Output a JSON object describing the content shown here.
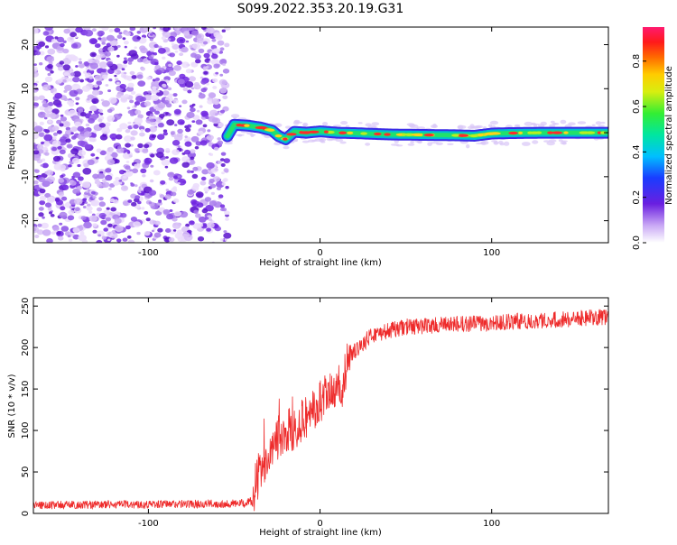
{
  "title": "S099.2022.353.20.19.G31",
  "colors": {
    "snr_line": "#ee2a2a",
    "axis": "#000000",
    "background": "#ffffff"
  },
  "chart_data": [
    {
      "type": "heatmap",
      "xlabel": "Height of straight line (km)",
      "ylabel": "Frequency (Hz)",
      "xlim": [
        -167,
        168
      ],
      "ylim": [
        -25,
        24
      ],
      "x_ticks": [
        -100,
        0,
        100
      ],
      "y_ticks": [
        -20,
        -10,
        0,
        10,
        20
      ],
      "x_tick_labels": [
        "-100",
        "0",
        "100"
      ],
      "y_tick_labels": [
        "-20",
        "-10",
        "0",
        "10",
        "20"
      ],
      "colorscale": "rainbow",
      "colorbar": {
        "label": "Normalized spectral amplitude",
        "range": [
          0,
          0.95
        ],
        "ticks": [
          0,
          0.2,
          0.4,
          0.6,
          0.8
        ],
        "tick_labels": [
          "0.0",
          "0.2",
          "0.4",
          "0.6",
          "0.8"
        ]
      },
      "noise_region_x": [
        -167,
        -54
      ],
      "ridge": {
        "x": [
          -54,
          -50,
          -42,
          -35,
          -28,
          -24,
          -20,
          -15,
          -8,
          0,
          10,
          20,
          40,
          60,
          80,
          90,
          100,
          110,
          130,
          150,
          168
        ],
        "y": [
          -0.8,
          1.8,
          1.6,
          1.2,
          0.5,
          -0.8,
          -1.5,
          0.2,
          0.0,
          0.3,
          0.0,
          -0.1,
          -0.4,
          -0.5,
          -0.6,
          -0.7,
          -0.2,
          -0.1,
          0.0,
          0.0,
          0.0
        ]
      }
    },
    {
      "type": "line",
      "xlabel": "Height of straight line (km)",
      "ylabel": "SNR (10 * v/v)",
      "xlim": [
        -167,
        168
      ],
      "ylim": [
        0,
        260
      ],
      "x_ticks": [
        -100,
        0,
        100
      ],
      "y_ticks": [
        0,
        50,
        100,
        150,
        200,
        250
      ],
      "x_tick_labels": [
        "-100",
        "0",
        "100"
      ],
      "y_tick_labels": [
        "0",
        "50",
        "100",
        "150",
        "200",
        "250"
      ],
      "trend": {
        "x": [
          -167,
          -100,
          -44,
          -40,
          -36,
          -30,
          -20,
          -10,
          -5,
          0,
          8,
          13,
          15,
          20,
          30,
          50,
          100,
          150,
          168
        ],
        "y": [
          10,
          11,
          12,
          15,
          45,
          75,
          95,
          115,
          120,
          135,
          145,
          140,
          175,
          195,
          215,
          225,
          230,
          235,
          237
        ]
      },
      "noise_amplitude_low": 5,
      "noise_amplitude_mid": 28,
      "noise_amplitude_high": 10
    }
  ]
}
